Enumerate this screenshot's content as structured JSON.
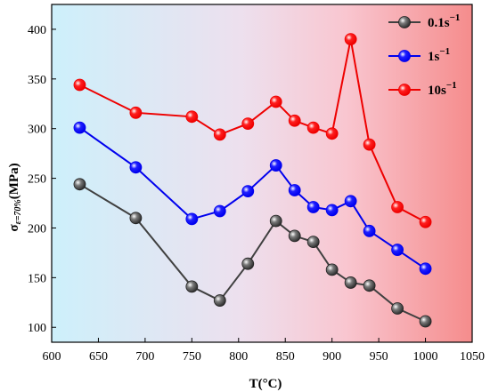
{
  "chart_data": {
    "type": "line",
    "xlabel": "T(°C)",
    "ylabel_main": "σ",
    "ylabel_sub": "ε=70%",
    "ylabel_unit": "(MPa)",
    "xlim": [
      600,
      1050
    ],
    "ylim": [
      85,
      425
    ],
    "x_ticks": [
      600,
      650,
      700,
      750,
      800,
      850,
      900,
      950,
      1000,
      1050
    ],
    "y_ticks": [
      100,
      150,
      200,
      250,
      300,
      350,
      400
    ],
    "background_gradient": [
      "#cdf0fb",
      "#ede0ee",
      "#f9c6d0",
      "#f58c8c"
    ],
    "legend_position": "top-right",
    "series": [
      {
        "name": "0.1s",
        "name_sup": "−1",
        "color": "#404040",
        "marker_fill": "#7a7a7a",
        "x": [
          630,
          690,
          750,
          780,
          810,
          840,
          860,
          880,
          900,
          920,
          940,
          970,
          1000
        ],
        "y": [
          244,
          210,
          141,
          127,
          164,
          207,
          192,
          186,
          158,
          145,
          142,
          119,
          106
        ]
      },
      {
        "name": "1s",
        "name_sup": "−1",
        "color": "#0000ee",
        "marker_fill": "#2020ff",
        "x": [
          630,
          690,
          750,
          780,
          810,
          840,
          860,
          880,
          900,
          920,
          940,
          970,
          1000
        ],
        "y": [
          301,
          261,
          209,
          217,
          237,
          263,
          238,
          221,
          218,
          227,
          197,
          178,
          159
        ]
      },
      {
        "name": "10s",
        "name_sup": "−1",
        "color": "#ee0000",
        "marker_fill": "#ff2020",
        "x": [
          630,
          690,
          750,
          780,
          810,
          840,
          860,
          880,
          900,
          920,
          940,
          970,
          1000
        ],
        "y": [
          344,
          316,
          312,
          294,
          305,
          327,
          308,
          301,
          295,
          390,
          284,
          221,
          206
        ]
      }
    ]
  }
}
